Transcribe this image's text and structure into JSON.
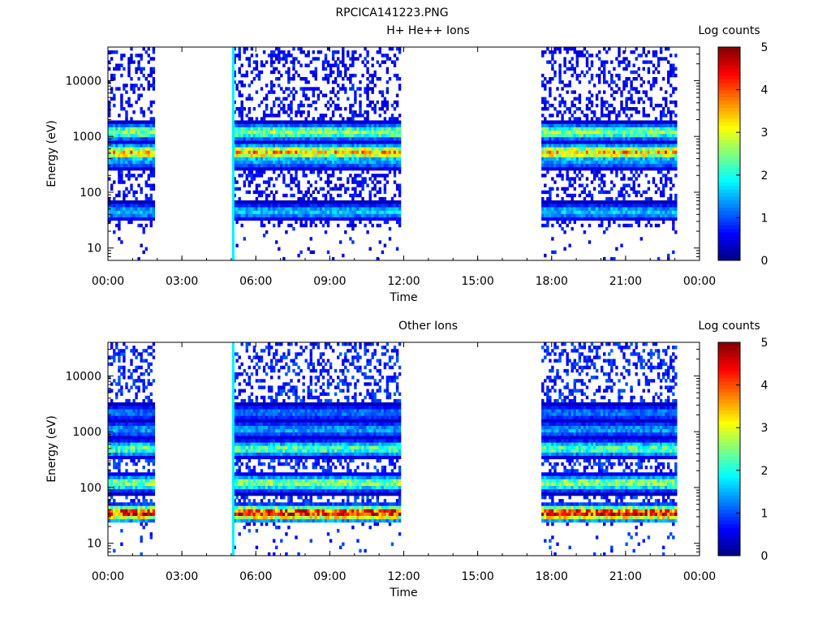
{
  "figure_title": "RPCICA141223.PNG",
  "chart_data": [
    {
      "type": "heatmap",
      "title": "H+ He++ Ions",
      "xlabel": "Time",
      "ylabel": "Energy (eV)",
      "xlim": [
        "00:00",
        "24:00"
      ],
      "ylim": [
        6,
        40000
      ],
      "y_scale": "log",
      "x_tick_labels": [
        "00:00",
        "03:00",
        "06:00",
        "09:00",
        "12:00",
        "15:00",
        "18:00",
        "21:00",
        "00:00"
      ],
      "y_tick_labels": [
        "10",
        "100",
        "1000",
        "10000"
      ],
      "colorbar": {
        "label": "Log counts",
        "range": [
          0,
          5
        ],
        "tick_labels": [
          "0",
          "1",
          "2",
          "3",
          "4",
          "5"
        ]
      },
      "data_intervals": [
        {
          "start": "00:00",
          "end": "01:50"
        },
        {
          "start": "05:05",
          "end": "11:50"
        },
        {
          "start": "17:35",
          "end": "23:05"
        }
      ],
      "spike": {
        "time": "05:05",
        "log_counts": 1.8
      },
      "bands": [
        {
          "energy_eV": 520,
          "log_counts": 3.4
        },
        {
          "energy_eV": 1200,
          "log_counts": 2.6
        },
        {
          "energy_eV": 360,
          "log_counts": 1.4
        },
        {
          "energy_eV": 45,
          "log_counts": 1.6
        }
      ],
      "background_log_counts": 0.3
    },
    {
      "type": "heatmap",
      "title": "Other Ions",
      "xlabel": "Time",
      "ylabel": "Energy (eV)",
      "xlim": [
        "00:00",
        "24:00"
      ],
      "ylim": [
        6,
        40000
      ],
      "y_scale": "log",
      "x_tick_labels": [
        "00:00",
        "03:00",
        "06:00",
        "09:00",
        "12:00",
        "15:00",
        "18:00",
        "21:00",
        "00:00"
      ],
      "y_tick_labels": [
        "10",
        "100",
        "1000",
        "10000"
      ],
      "colorbar": {
        "label": "Log counts",
        "range": [
          0,
          5
        ],
        "tick_labels": [
          "0",
          "1",
          "2",
          "3",
          "4",
          "5"
        ]
      },
      "data_intervals": [
        {
          "start": "00:00",
          "end": "01:50"
        },
        {
          "start": "05:05",
          "end": "11:50"
        },
        {
          "start": "17:35",
          "end": "23:05"
        }
      ],
      "spike": {
        "time": "05:05",
        "log_counts": 1.8
      },
      "bands": [
        {
          "energy_eV": 35,
          "log_counts": 4.3
        },
        {
          "energy_eV": 120,
          "log_counts": 2.6
        },
        {
          "energy_eV": 500,
          "log_counts": 2.3
        },
        {
          "energy_eV": 1100,
          "log_counts": 1.4
        },
        {
          "energy_eV": 2200,
          "log_counts": 1.2
        }
      ],
      "background_log_counts": 0.5
    }
  ]
}
